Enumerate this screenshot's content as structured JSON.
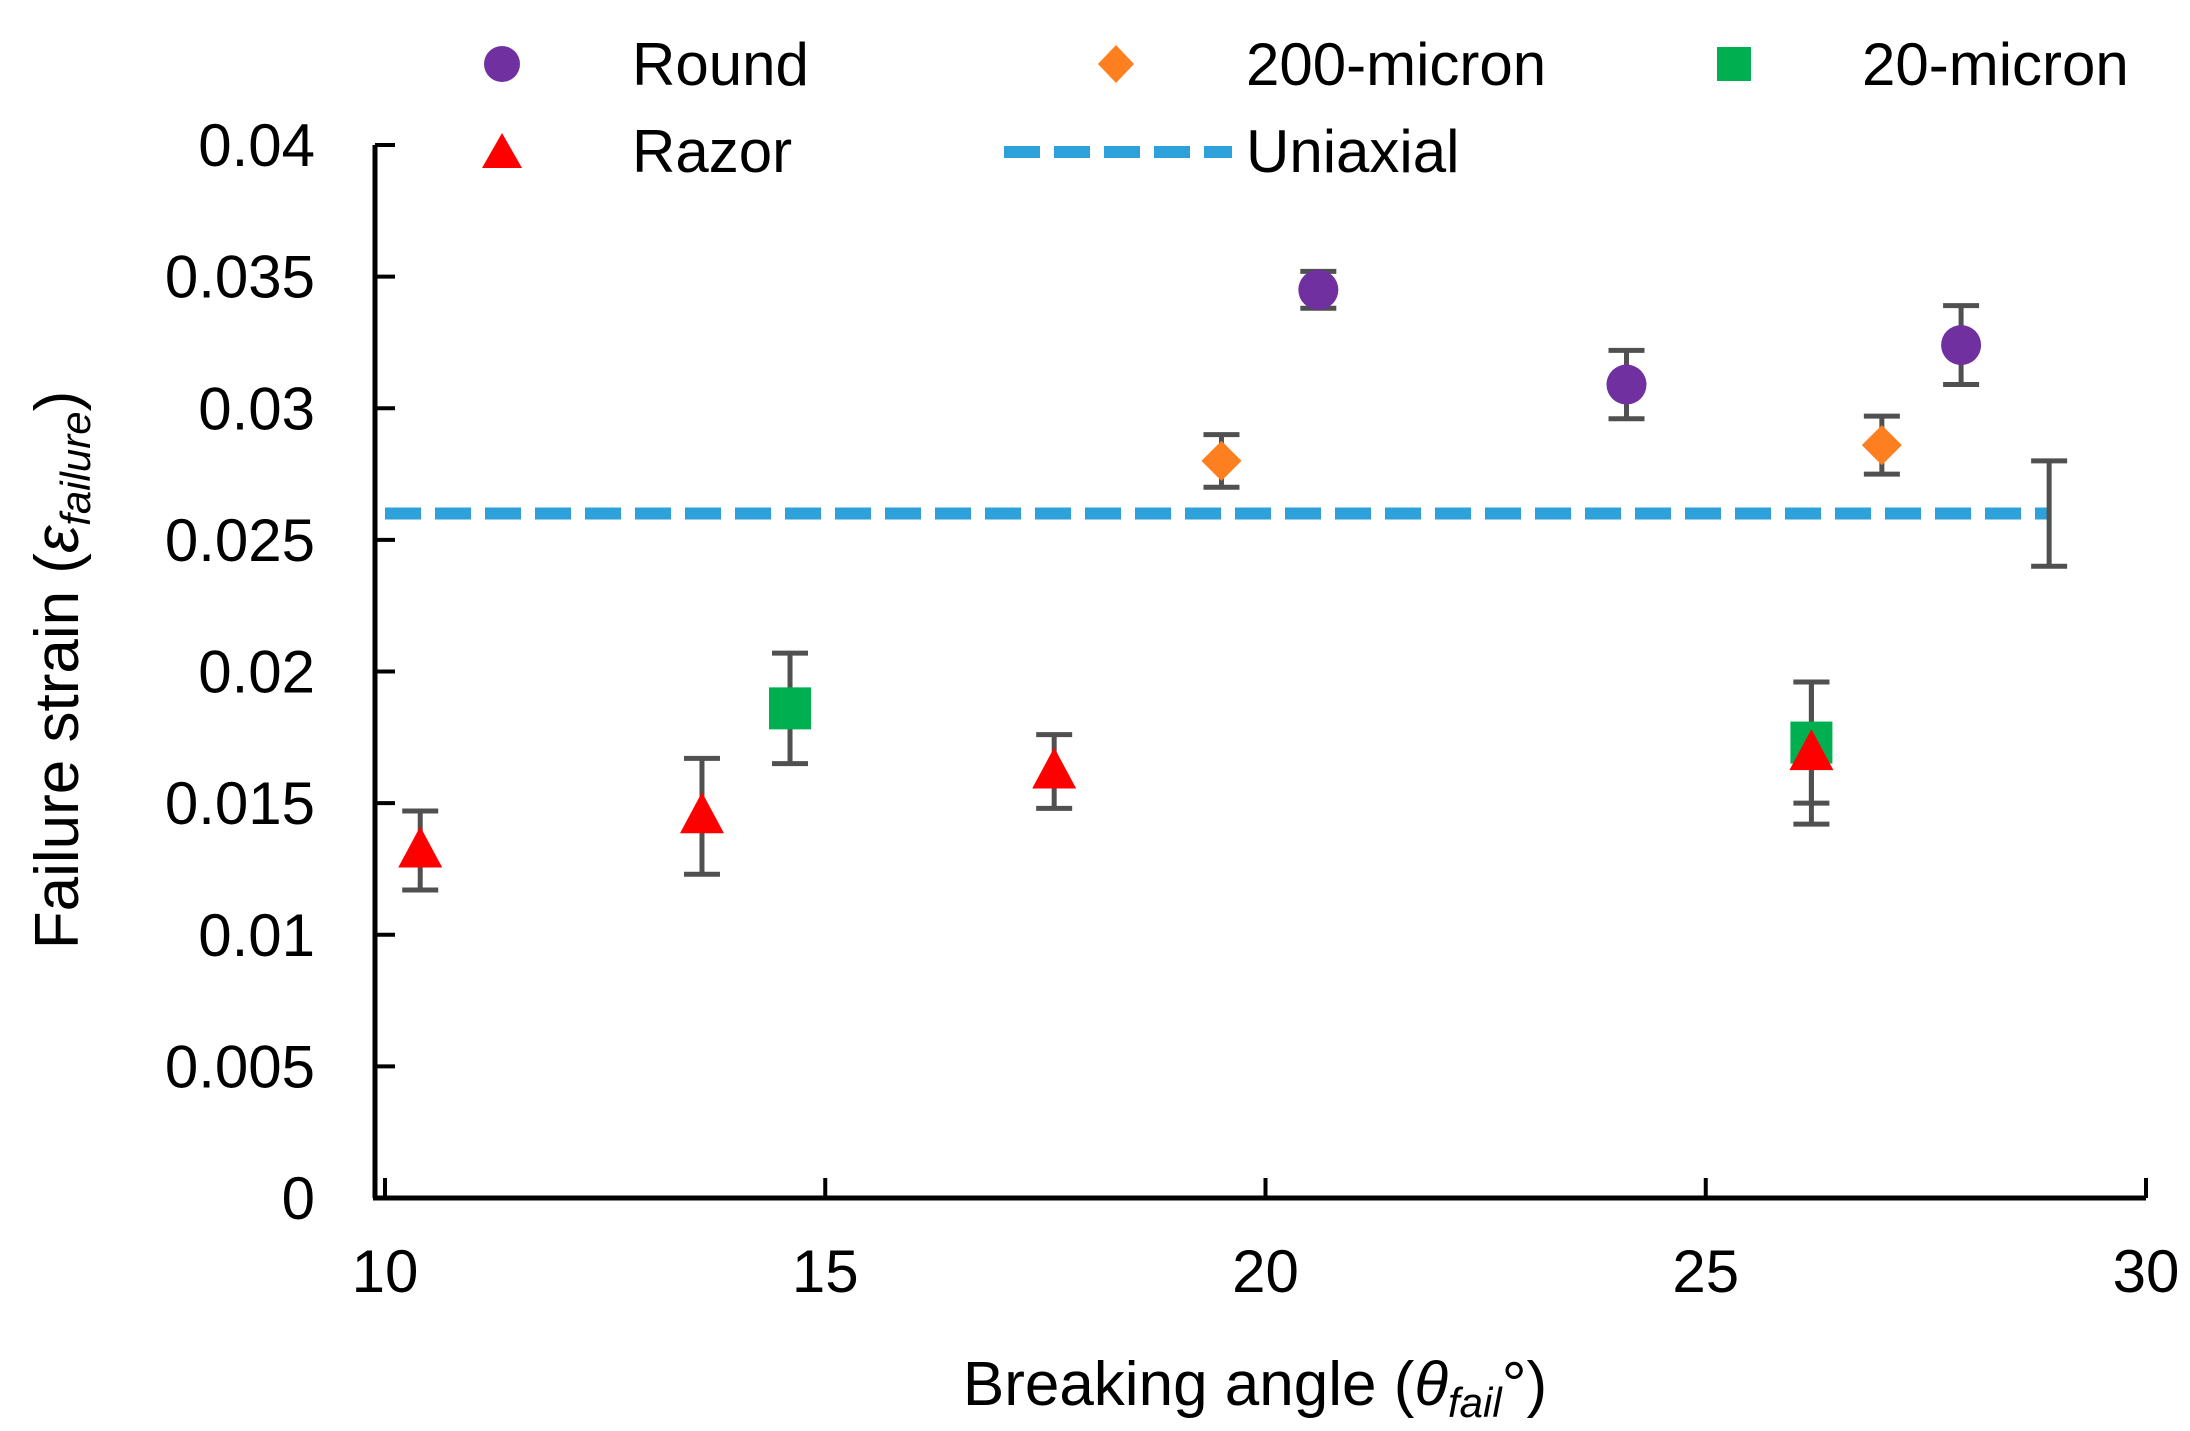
{
  "chart_data": {
    "type": "scatter",
    "title": "",
    "xlabel": {
      "main": "Breaking angle (",
      "italic": "θ",
      "sub": "fail",
      "tail": "°)"
    },
    "ylabel": {
      "main": "Failure strain (",
      "italic": "ε",
      "sub": "failure",
      "tail": ")"
    },
    "xlim": [
      10,
      30
    ],
    "ylim": [
      0,
      0.04
    ],
    "xticks": [
      10,
      15,
      20,
      25,
      30
    ],
    "yticks": [
      0,
      0.005,
      0.01,
      0.015,
      0.02,
      0.025,
      0.03,
      0.035,
      0.04
    ],
    "xtick_labels": [
      "10",
      "15",
      "20",
      "25",
      "30"
    ],
    "ytick_labels": [
      "0",
      "0.005",
      "0.01",
      "0.015",
      "0.02",
      "0.025",
      "0.03",
      "0.035",
      "0.04"
    ],
    "grid": false,
    "legend_position": "top",
    "series": [
      {
        "name": "Round",
        "marker": "circle",
        "color": "#7030a0",
        "points": [
          {
            "x": 20.6,
            "y": 0.0345,
            "err": 0.0007
          },
          {
            "x": 24.1,
            "y": 0.0309,
            "err": 0.0013
          },
          {
            "x": 27.9,
            "y": 0.0324,
            "err": 0.0015
          }
        ]
      },
      {
        "name": "200-micron",
        "marker": "diamond",
        "color": "#fd7f20",
        "points": [
          {
            "x": 19.5,
            "y": 0.028,
            "err": 0.001
          },
          {
            "x": 27.0,
            "y": 0.0286,
            "err": 0.0011
          }
        ]
      },
      {
        "name": "20-micron",
        "marker": "square",
        "color": "#00b050",
        "points": [
          {
            "x": 14.6,
            "y": 0.0186,
            "err": 0.0021
          },
          {
            "x": 26.2,
            "y": 0.0173,
            "err": 0.0023
          }
        ]
      },
      {
        "name": "Razor",
        "marker": "triangle",
        "color": "#ff0000",
        "points": [
          {
            "x": 10.4,
            "y": 0.0132,
            "err": 0.0015
          },
          {
            "x": 13.6,
            "y": 0.0145,
            "err": 0.0022
          },
          {
            "x": 17.6,
            "y": 0.0162,
            "err": 0.0014
          },
          {
            "x": 26.2,
            "y": 0.0169,
            "err": 0.0027
          }
        ]
      },
      {
        "name": "Uniaxial",
        "type": "line",
        "style": "dashed",
        "color": "#2ea1db",
        "x": [
          10,
          28.9
        ],
        "y": [
          0.026,
          0.026
        ],
        "end_err": {
          "x": 28.9,
          "y": 0.026,
          "err": 0.002
        }
      }
    ]
  }
}
